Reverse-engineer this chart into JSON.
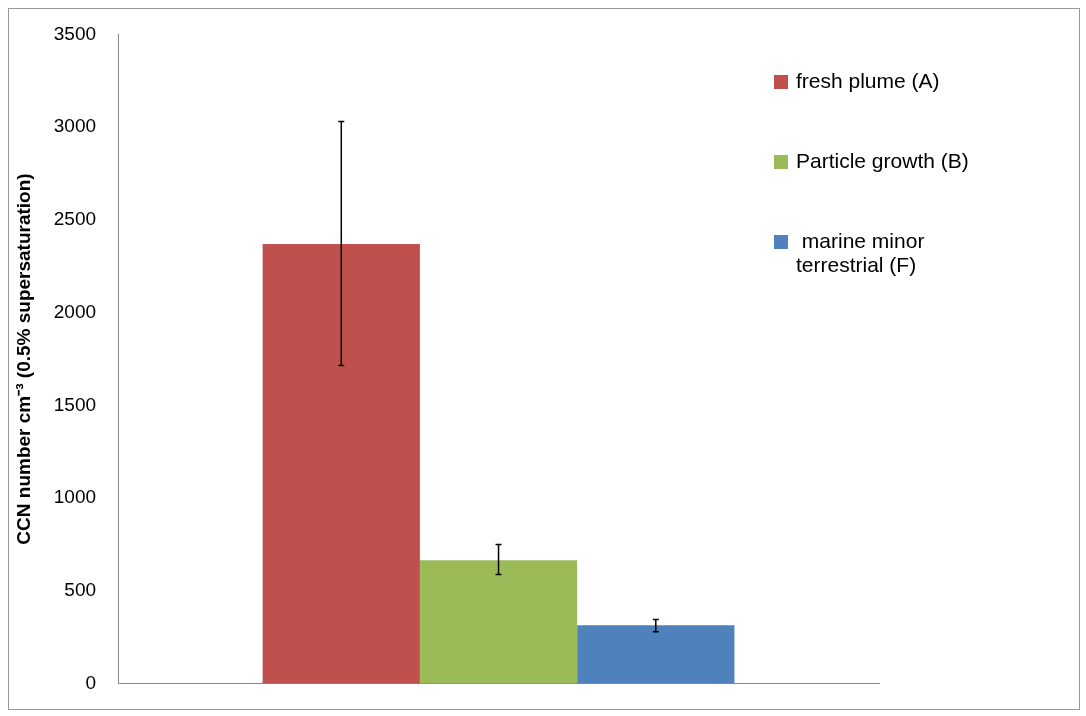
{
  "chart_data": {
    "type": "bar",
    "ylabel": "CCN number cm⁻³ (0.5% supersaturation)",
    "categories": [
      null
    ],
    "series": [
      {
        "name": "fresh plume (A)",
        "color": "#c0504d",
        "values": [
          2370
        ],
        "errors": [
          [
            1715,
            3030
          ]
        ]
      },
      {
        "name": "Particle growth (B)",
        "color": "#9bbb59",
        "values": [
          665
        ],
        "errors": [
          [
            588,
            750
          ]
        ]
      },
      {
        "name": " marine minor terrestrial (F)",
        "color": "#4f81bd",
        "values": [
          315
        ],
        "errors": [
          [
            280,
            345
          ]
        ]
      }
    ],
    "ylim": [
      0,
      3500
    ],
    "yticks": [
      0,
      500,
      1000,
      1500,
      2000,
      2500,
      3000,
      3500
    ],
    "grid": false,
    "legend": "top right"
  }
}
